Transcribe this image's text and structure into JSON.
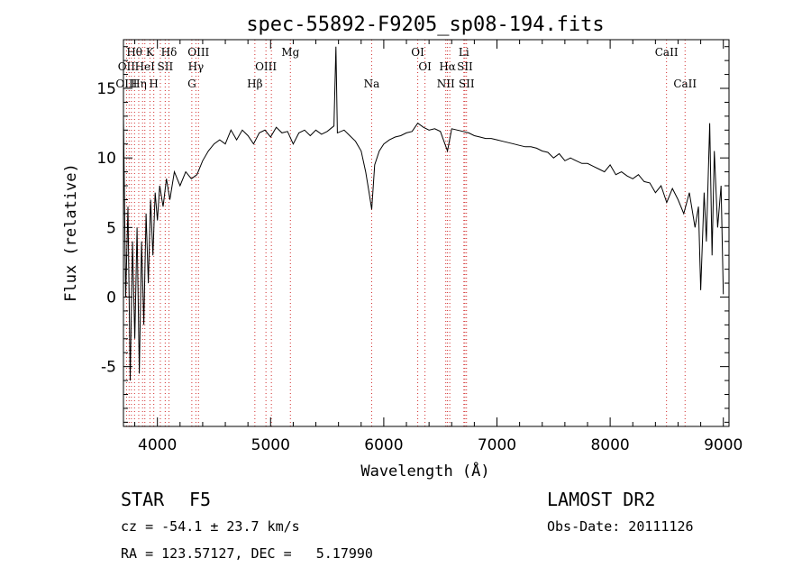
{
  "chart_data": {
    "type": "line",
    "title": "spec-55892-F9205_sp08-194.fits",
    "xlabel": "Wavelength (Å)",
    "ylabel": "Flux (relative)",
    "xlim": [
      3700,
      9050
    ],
    "ylim": [
      -9.3,
      18.5
    ],
    "xticks": [
      4000,
      5000,
      6000,
      7000,
      8000,
      9000
    ],
    "yticks": [
      -5,
      0,
      5,
      10,
      15
    ],
    "grid": false,
    "series": [
      {
        "color": "#000000",
        "points": [
          [
            3700,
            13.0
          ],
          [
            3720,
            0.0
          ],
          [
            3740,
            6.5
          ],
          [
            3760,
            -6.0
          ],
          [
            3780,
            4.0
          ],
          [
            3800,
            -3.0
          ],
          [
            3820,
            5.0
          ],
          [
            3840,
            -5.5
          ],
          [
            3860,
            4.0
          ],
          [
            3880,
            -2.0
          ],
          [
            3900,
            6.0
          ],
          [
            3920,
            1.0
          ],
          [
            3940,
            7.0
          ],
          [
            3960,
            3.0
          ],
          [
            3980,
            7.5
          ],
          [
            4000,
            5.5
          ],
          [
            4020,
            8.0
          ],
          [
            4050,
            6.5
          ],
          [
            4080,
            8.5
          ],
          [
            4110,
            7.0
          ],
          [
            4150,
            9.0
          ],
          [
            4200,
            8.0
          ],
          [
            4250,
            9.0
          ],
          [
            4300,
            8.5
          ],
          [
            4350,
            8.8
          ],
          [
            4400,
            9.8
          ],
          [
            4450,
            10.5
          ],
          [
            4500,
            11.0
          ],
          [
            4550,
            11.3
          ],
          [
            4600,
            11.0
          ],
          [
            4650,
            12.0
          ],
          [
            4700,
            11.3
          ],
          [
            4750,
            12.0
          ],
          [
            4800,
            11.6
          ],
          [
            4850,
            11.0
          ],
          [
            4900,
            11.8
          ],
          [
            4950,
            12.0
          ],
          [
            5000,
            11.5
          ],
          [
            5050,
            12.2
          ],
          [
            5100,
            11.8
          ],
          [
            5150,
            11.9
          ],
          [
            5200,
            11.0
          ],
          [
            5250,
            11.8
          ],
          [
            5300,
            12.0
          ],
          [
            5350,
            11.6
          ],
          [
            5400,
            12.0
          ],
          [
            5450,
            11.7
          ],
          [
            5500,
            11.9
          ],
          [
            5560,
            12.3
          ],
          [
            5577,
            18.0
          ],
          [
            5590,
            11.8
          ],
          [
            5650,
            12.0
          ],
          [
            5700,
            11.6
          ],
          [
            5750,
            11.2
          ],
          [
            5800,
            10.5
          ],
          [
            5840,
            9.0
          ],
          [
            5870,
            7.5
          ],
          [
            5893,
            6.3
          ],
          [
            5920,
            9.5
          ],
          [
            5960,
            10.5
          ],
          [
            6000,
            11.0
          ],
          [
            6050,
            11.3
          ],
          [
            6100,
            11.5
          ],
          [
            6150,
            11.6
          ],
          [
            6200,
            11.8
          ],
          [
            6250,
            11.9
          ],
          [
            6300,
            12.5
          ],
          [
            6350,
            12.2
          ],
          [
            6400,
            12.0
          ],
          [
            6450,
            12.1
          ],
          [
            6500,
            11.9
          ],
          [
            6563,
            10.5
          ],
          [
            6600,
            12.1
          ],
          [
            6650,
            12.0
          ],
          [
            6700,
            11.9
          ],
          [
            6750,
            11.8
          ],
          [
            6800,
            11.6
          ],
          [
            6850,
            11.5
          ],
          [
            6900,
            11.4
          ],
          [
            6950,
            11.4
          ],
          [
            7000,
            11.3
          ],
          [
            7050,
            11.2
          ],
          [
            7100,
            11.1
          ],
          [
            7150,
            11.0
          ],
          [
            7200,
            10.9
          ],
          [
            7250,
            10.8
          ],
          [
            7300,
            10.8
          ],
          [
            7350,
            10.7
          ],
          [
            7400,
            10.5
          ],
          [
            7450,
            10.4
          ],
          [
            7500,
            10.0
          ],
          [
            7550,
            10.3
          ],
          [
            7600,
            9.8
          ],
          [
            7650,
            10.0
          ],
          [
            7700,
            9.8
          ],
          [
            7750,
            9.6
          ],
          [
            7800,
            9.6
          ],
          [
            7850,
            9.4
          ],
          [
            7900,
            9.2
          ],
          [
            7950,
            9.0
          ],
          [
            8000,
            9.5
          ],
          [
            8050,
            8.8
          ],
          [
            8100,
            9.0
          ],
          [
            8150,
            8.7
          ],
          [
            8200,
            8.5
          ],
          [
            8250,
            8.8
          ],
          [
            8300,
            8.3
          ],
          [
            8350,
            8.2
          ],
          [
            8400,
            7.5
          ],
          [
            8450,
            8.0
          ],
          [
            8500,
            6.8
          ],
          [
            8550,
            7.8
          ],
          [
            8600,
            7.0
          ],
          [
            8650,
            6.0
          ],
          [
            8700,
            7.5
          ],
          [
            8750,
            5.0
          ],
          [
            8780,
            6.5
          ],
          [
            8800,
            0.5
          ],
          [
            8830,
            7.5
          ],
          [
            8850,
            4.0
          ],
          [
            8880,
            12.5
          ],
          [
            8900,
            3.0
          ],
          [
            8920,
            10.5
          ],
          [
            8950,
            5.0
          ],
          [
            8980,
            8.0
          ],
          [
            9000,
            0.2
          ]
        ]
      }
    ],
    "reference_lines": {
      "color": "#d22d2d",
      "wavelengths": [
        3727,
        3750,
        3770,
        3798,
        3835,
        3869,
        3889,
        3934,
        3968,
        4026,
        4069,
        4102,
        4304,
        4340,
        4363,
        4861,
        4959,
        5007,
        5175,
        5893,
        6300,
        6364,
        6548,
        6563,
        6583,
        6708,
        6717,
        6731,
        8498,
        8662
      ]
    },
    "line_labels": [
      {
        "text": "Hθ",
        "wl": 3797,
        "row": 1
      },
      {
        "text": "K",
        "wl": 3934,
        "row": 1
      },
      {
        "text": "Hδ",
        "wl": 4102,
        "row": 1
      },
      {
        "text": "OIII",
        "wl": 4363,
        "row": 1
      },
      {
        "text": "Mg",
        "wl": 5175,
        "row": 1
      },
      {
        "text": "OI",
        "wl": 6300,
        "row": 1
      },
      {
        "text": "Li",
        "wl": 6708,
        "row": 1
      },
      {
        "text": "CaII",
        "wl": 8498,
        "row": 1
      },
      {
        "text": "OII",
        "wl": 3727,
        "row": 2
      },
      {
        "text": "HeI",
        "wl": 3889,
        "row": 2
      },
      {
        "text": "SII",
        "wl": 4069,
        "row": 2
      },
      {
        "text": "Hγ",
        "wl": 4340,
        "row": 2
      },
      {
        "text": "OIII",
        "wl": 4959,
        "row": 2
      },
      {
        "text": "OI",
        "wl": 6364,
        "row": 2
      },
      {
        "text": "Hα",
        "wl": 6563,
        "row": 2
      },
      {
        "text": "SII",
        "wl": 6717,
        "row": 2
      },
      {
        "text": "OIII",
        "wl": 3727,
        "row": 3
      },
      {
        "text": "Hη",
        "wl": 3835,
        "row": 3
      },
      {
        "text": "H",
        "wl": 3968,
        "row": 3
      },
      {
        "text": "G",
        "wl": 4304,
        "row": 3
      },
      {
        "text": "Hβ",
        "wl": 4861,
        "row": 3
      },
      {
        "text": "Na",
        "wl": 5893,
        "row": 3
      },
      {
        "text": "NII",
        "wl": 6548,
        "row": 3
      },
      {
        "text": "SII",
        "wl": 6731,
        "row": 3
      },
      {
        "text": "CaII",
        "wl": 8662,
        "row": 3
      }
    ]
  },
  "info": {
    "object_class": "STAR",
    "subclass": "F5",
    "redshift": "cz = -54.1 ± 23.7 km/s",
    "coords": "RA = 123.57127, DEC =   5.17990",
    "survey": "LAMOST DR2",
    "obs_date": "Obs-Date: 20111126"
  }
}
